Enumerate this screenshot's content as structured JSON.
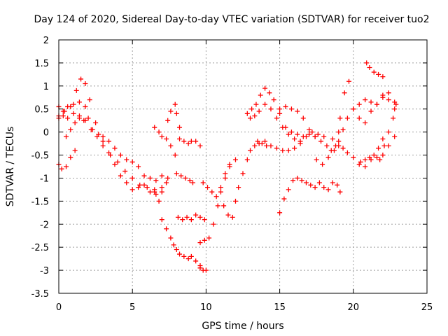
{
  "chart_data": {
    "type": "scatter",
    "title": "Day 124 of 2020, Sidereal Day-to-day VTEC variation (SDTVAR) for receiver tuo2",
    "xlabel": "GPS time / hours",
    "ylabel": "SDTVAR / TECUs",
    "xlim": [
      0,
      25
    ],
    "ylim": [
      -3.5,
      2
    ],
    "xticks": [
      0,
      5,
      10,
      15,
      20,
      25
    ],
    "xtick_labels": [
      "0",
      "5",
      "10",
      "15",
      "20",
      "25"
    ],
    "yticks": [
      2,
      1.5,
      1,
      0.5,
      0,
      -0.5,
      -1,
      -1.5,
      -2,
      -2.5,
      -3,
      -3.5
    ],
    "ytick_labels": [
      "2",
      "1.5",
      "1",
      "0.5",
      "0",
      "-0.5",
      "-1",
      "-1.5",
      "-2",
      "-2.5",
      "-3",
      "-3.5"
    ],
    "grid": true,
    "legend": "none",
    "marker": "+",
    "color": "#ff0000",
    "series": [
      {
        "x": [
          0,
          0.3,
          0.6,
          1.0,
          1.4,
          1.8,
          2.0,
          2.3,
          2.7,
          3.0,
          3.4,
          3.8,
          4.2,
          4.6,
          5.0,
          5.4,
          5.8,
          6.2,
          6.6,
          7.0,
          7.4
        ],
        "y": [
          0.55,
          0.45,
          0.55,
          0.6,
          0.65,
          0.55,
          0.3,
          0.05,
          -0.05,
          -0.1,
          -0.2,
          -0.35,
          -0.5,
          -0.6,
          -0.65,
          -0.75,
          -0.95,
          -1.0,
          -1.05,
          -0.95,
          -1.0
        ]
      },
      {
        "x": [
          0,
          0.4,
          0.8,
          1.2,
          1.5,
          1.8,
          2.1,
          2.5,
          3.0,
          3.4,
          3.8,
          4.2,
          4.6,
          5.0,
          5.4,
          5.8,
          6.2,
          6.6,
          7.0
        ],
        "y": [
          0.35,
          0.45,
          0.55,
          0.9,
          1.15,
          1.05,
          0.7,
          0.2,
          -0.2,
          -0.45,
          -0.7,
          -0.95,
          -1.1,
          -1.25,
          -1.2,
          -1.15,
          -1.3,
          -1.35,
          -1.2
        ]
      },
      {
        "x": [
          0,
          0.3,
          0.6,
          1.0,
          1.4,
          1.8,
          2.2,
          2.6,
          3.0,
          3.5,
          4.0,
          4.5,
          5.0,
          5.5,
          6.0,
          6.5,
          7.0,
          7.3
        ],
        "y": [
          0.3,
          0.35,
          0.3,
          0.4,
          0.35,
          0.25,
          0.05,
          -0.1,
          -0.3,
          -0.5,
          -0.65,
          -0.85,
          -1.0,
          -1.15,
          -1.2,
          -1.25,
          -1.3,
          -1.1
        ]
      },
      {
        "x": [
          0,
          0.2,
          0.5,
          0.8,
          1.1
        ],
        "y": [
          -0.7,
          -0.8,
          -0.75,
          -0.55,
          -0.4
        ]
      },
      {
        "x": [
          0.5,
          0.8,
          1.1,
          1.4,
          1.7
        ],
        "y": [
          -0.1,
          0.05,
          0.2,
          0.3,
          0.25
        ]
      },
      {
        "x": [
          6.5,
          6.8,
          7.0,
          7.3,
          7.6,
          7.8,
          8.0,
          8.2,
          8.5,
          8.8,
          9.0,
          9.3,
          9.6
        ],
        "y": [
          -1.3,
          -1.5,
          -1.9,
          -2.1,
          -2.3,
          -2.45,
          -2.55,
          -2.65,
          -2.7,
          -2.75,
          -2.7,
          -2.8,
          -2.95
        ]
      },
      {
        "x": [
          9.6,
          9.8,
          10.0
        ],
        "y": [
          -2.9,
          -3.0,
          -3.0
        ]
      },
      {
        "x": [
          6.5,
          6.8,
          7.0,
          7.3,
          7.6,
          7.9
        ],
        "y": [
          0.1,
          0.0,
          -0.1,
          -0.15,
          -0.3,
          -0.5
        ]
      },
      {
        "x": [
          7.4,
          7.6,
          7.9,
          8.0,
          8.2
        ],
        "y": [
          0.25,
          0.45,
          0.6,
          0.4,
          0.1
        ]
      },
      {
        "x": [
          8.2,
          8.5,
          8.8,
          9.0,
          9.3,
          9.6
        ],
        "y": [
          -0.15,
          -0.2,
          -0.25,
          -0.2,
          -0.2,
          -0.3
        ]
      },
      {
        "x": [
          8.0,
          8.3,
          8.6,
          8.9,
          9.1
        ],
        "y": [
          -0.9,
          -0.95,
          -1.0,
          -1.05,
          -1.1
        ]
      },
      {
        "x": [
          8.1,
          8.4,
          8.7,
          9.0,
          9.3,
          9.6,
          9.9
        ],
        "y": [
          -1.85,
          -1.9,
          -1.85,
          -1.9,
          -1.8,
          -1.85,
          -1.9
        ]
      },
      {
        "x": [
          9.6,
          9.9,
          10.2,
          10.5,
          10.8,
          11.0,
          11.3,
          11.6,
          12.0
        ],
        "y": [
          -2.4,
          -2.35,
          -2.3,
          -2.0,
          -1.6,
          -1.3,
          -1.0,
          -0.75,
          -0.6
        ]
      },
      {
        "x": [
          9.8,
          10.1,
          10.4,
          10.7,
          11.0,
          11.3,
          11.6
        ],
        "y": [
          -1.1,
          -1.2,
          -1.3,
          -1.4,
          -1.2,
          -0.9,
          -0.7
        ]
      },
      {
        "x": [
          11.2,
          11.5,
          11.8,
          12.0,
          12.2,
          12.5,
          12.8,
          13.0,
          13.3,
          13.6,
          14.0
        ],
        "y": [
          -1.6,
          -1.8,
          -1.85,
          -1.5,
          -1.2,
          -0.9,
          -0.6,
          -0.4,
          -0.3,
          -0.25,
          -0.2
        ]
      },
      {
        "x": [
          12.8,
          13.1,
          13.4,
          13.7,
          14.0,
          14.3,
          14.6,
          15.0,
          15.4,
          15.8,
          16.2,
          16.6,
          17.0,
          17.4
        ],
        "y": [
          0.4,
          0.5,
          0.6,
          0.8,
          0.95,
          0.85,
          0.7,
          0.4,
          0.1,
          0.0,
          -0.05,
          -0.1,
          -0.05,
          -0.1
        ]
      },
      {
        "x": [
          13.0,
          13.3,
          13.6,
          14.0,
          14.4,
          14.8,
          15.2,
          15.6,
          16.0,
          16.4,
          16.8,
          17.2,
          17.6,
          18.0
        ],
        "y": [
          0.3,
          0.35,
          0.45,
          0.6,
          0.5,
          0.3,
          0.1,
          -0.05,
          -0.15,
          -0.2,
          -0.1,
          0.0,
          -0.05,
          -0.1
        ]
      },
      {
        "x": [
          15.0,
          15.4,
          15.8,
          16.2,
          16.6,
          17.0,
          17.4,
          17.8,
          18.2,
          18.6,
          19.0
        ],
        "y": [
          0.5,
          0.55,
          0.5,
          0.45,
          0.3,
          0.05,
          -0.1,
          -0.2,
          -0.3,
          -0.15,
          0.0
        ]
      },
      {
        "x": [
          13.5,
          13.8,
          14.1,
          14.4,
          14.8,
          15.2,
          15.6,
          16.0,
          16.4
        ],
        "y": [
          -0.2,
          -0.25,
          -0.3,
          -0.3,
          -0.35,
          -0.4,
          -0.4,
          -0.35,
          -0.25
        ]
      },
      {
        "x": [
          15.0,
          15.3,
          15.6,
          15.9,
          16.2,
          16.5,
          16.8,
          17.1,
          17.4,
          17.7,
          18.0,
          18.3,
          18.6,
          18.9,
          19.1
        ],
        "y": [
          -1.75,
          -1.45,
          -1.25,
          -1.05,
          -1.0,
          -1.05,
          -1.1,
          -1.15,
          -1.2,
          -1.1,
          -1.2,
          -1.25,
          -1.1,
          -1.15,
          -1.3
        ]
      },
      {
        "x": [
          17.5,
          17.9,
          18.3,
          18.7,
          19.0,
          19.3,
          19.6,
          20.0,
          20.4,
          20.8,
          21.2,
          21.6,
          22.0,
          22.4,
          22.8
        ],
        "y": [
          -0.6,
          -0.7,
          -0.55,
          -0.4,
          -0.2,
          0.05,
          0.3,
          0.5,
          0.6,
          0.7,
          0.65,
          0.6,
          0.75,
          0.7,
          0.65
        ]
      },
      {
        "x": [
          18.5,
          18.8,
          19.1,
          19.4,
          19.7,
          20.0,
          20.4,
          20.8,
          21.2,
          21.6,
          22.0,
          22.4,
          22.8
        ],
        "y": [
          -0.4,
          -0.3,
          0.3,
          0.85,
          1.1,
          0.5,
          0.3,
          0.2,
          0.45,
          0.6,
          0.8,
          0.85,
          0.5
        ]
      },
      {
        "x": [
          19.0,
          19.3,
          19.6,
          20.0,
          20.4,
          20.8,
          21.2,
          21.6,
          22.0,
          22.4,
          22.8
        ],
        "y": [
          -0.3,
          -0.35,
          -0.45,
          -0.55,
          -0.7,
          -0.75,
          -0.6,
          -0.55,
          -0.5,
          -0.3,
          -0.1
        ]
      },
      {
        "x": [
          20.5,
          20.8,
          21.1,
          21.4,
          21.7,
          22.0
        ],
        "y": [
          -0.65,
          -0.6,
          -0.55,
          -0.5,
          -0.35,
          -0.15
        ]
      },
      {
        "x": [
          20.9,
          21.1,
          21.4,
          21.7,
          22.0
        ],
        "y": [
          1.5,
          1.4,
          1.3,
          1.25,
          1.2
        ]
      },
      {
        "x": [
          21.8,
          22.1,
          22.4,
          22.7,
          22.9
        ],
        "y": [
          -0.6,
          -0.3,
          0.0,
          0.3,
          0.6
        ]
      }
    ]
  }
}
